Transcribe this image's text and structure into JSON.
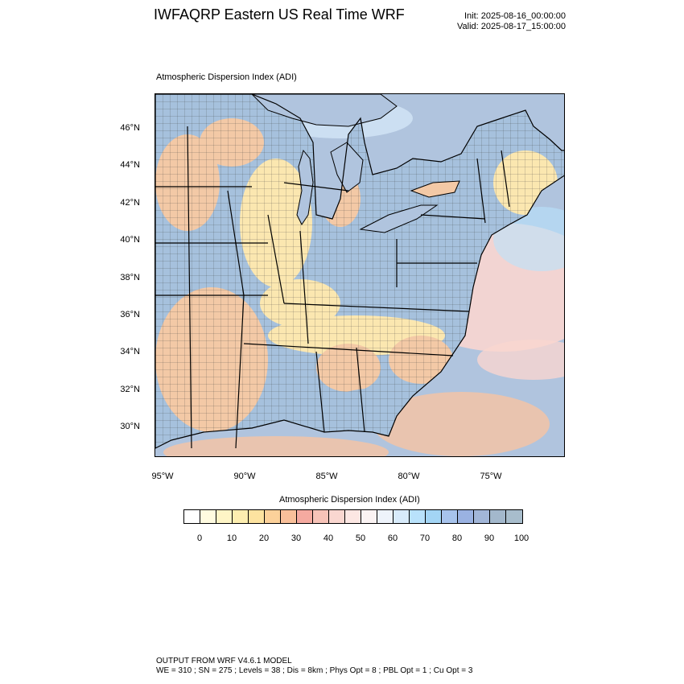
{
  "header": {
    "title": "IWFAQRP Eastern US Real Time WRF",
    "init": "Init: 2025-08-16_00:00:00",
    "valid": "Valid: 2025-08-17_15:00:00"
  },
  "map": {
    "field_label": "Atmospheric Dispersion Index   (ADI)",
    "lat_labels": [
      "46°N",
      "44°N",
      "42°N",
      "40°N",
      "38°N",
      "36°N",
      "34°N",
      "32°N",
      "30°N"
    ],
    "lon_labels": [
      "95°W",
      "90°W",
      "85°W",
      "80°W",
      "75°W"
    ],
    "colors": {
      "land_blue": "#a6c1dd",
      "land_orange": "#f3c9a6",
      "land_yellow": "#fbe7b0",
      "water": "#b0c4de",
      "ocean_pink": "#f9d6d0",
      "ocean_orange": "#f8c4a2"
    }
  },
  "colorbar": {
    "title": "Atmospheric Dispersion Index  (ADI)",
    "colors": [
      "#ffffff",
      "#fffbe0",
      "#fef5c6",
      "#fdeeb0",
      "#fde3a0",
      "#fcd19a",
      "#f9c09a",
      "#f5aaa0",
      "#f7c3b8",
      "#fad7d0",
      "#fce7e3",
      "#fbf3f3",
      "#eef3fb",
      "#d8ebfb",
      "#b9e2fb",
      "#a3d5f5",
      "#a7c3ec",
      "#9ab2e2",
      "#a2b6d8",
      "#a3b8cc",
      "#a8bdcc"
    ],
    "ticks": [
      "0",
      "10",
      "20",
      "30",
      "40",
      "50",
      "60",
      "70",
      "80",
      "90",
      "100"
    ]
  },
  "footer": {
    "line1": "OUTPUT FROM WRF V4.6.1 MODEL",
    "line2": "WE = 310 ; SN = 275 ; Levels = 38 ; Dis = 8km ; Phys Opt = 8 ; PBL Opt = 1 ; Cu Opt = 3"
  }
}
